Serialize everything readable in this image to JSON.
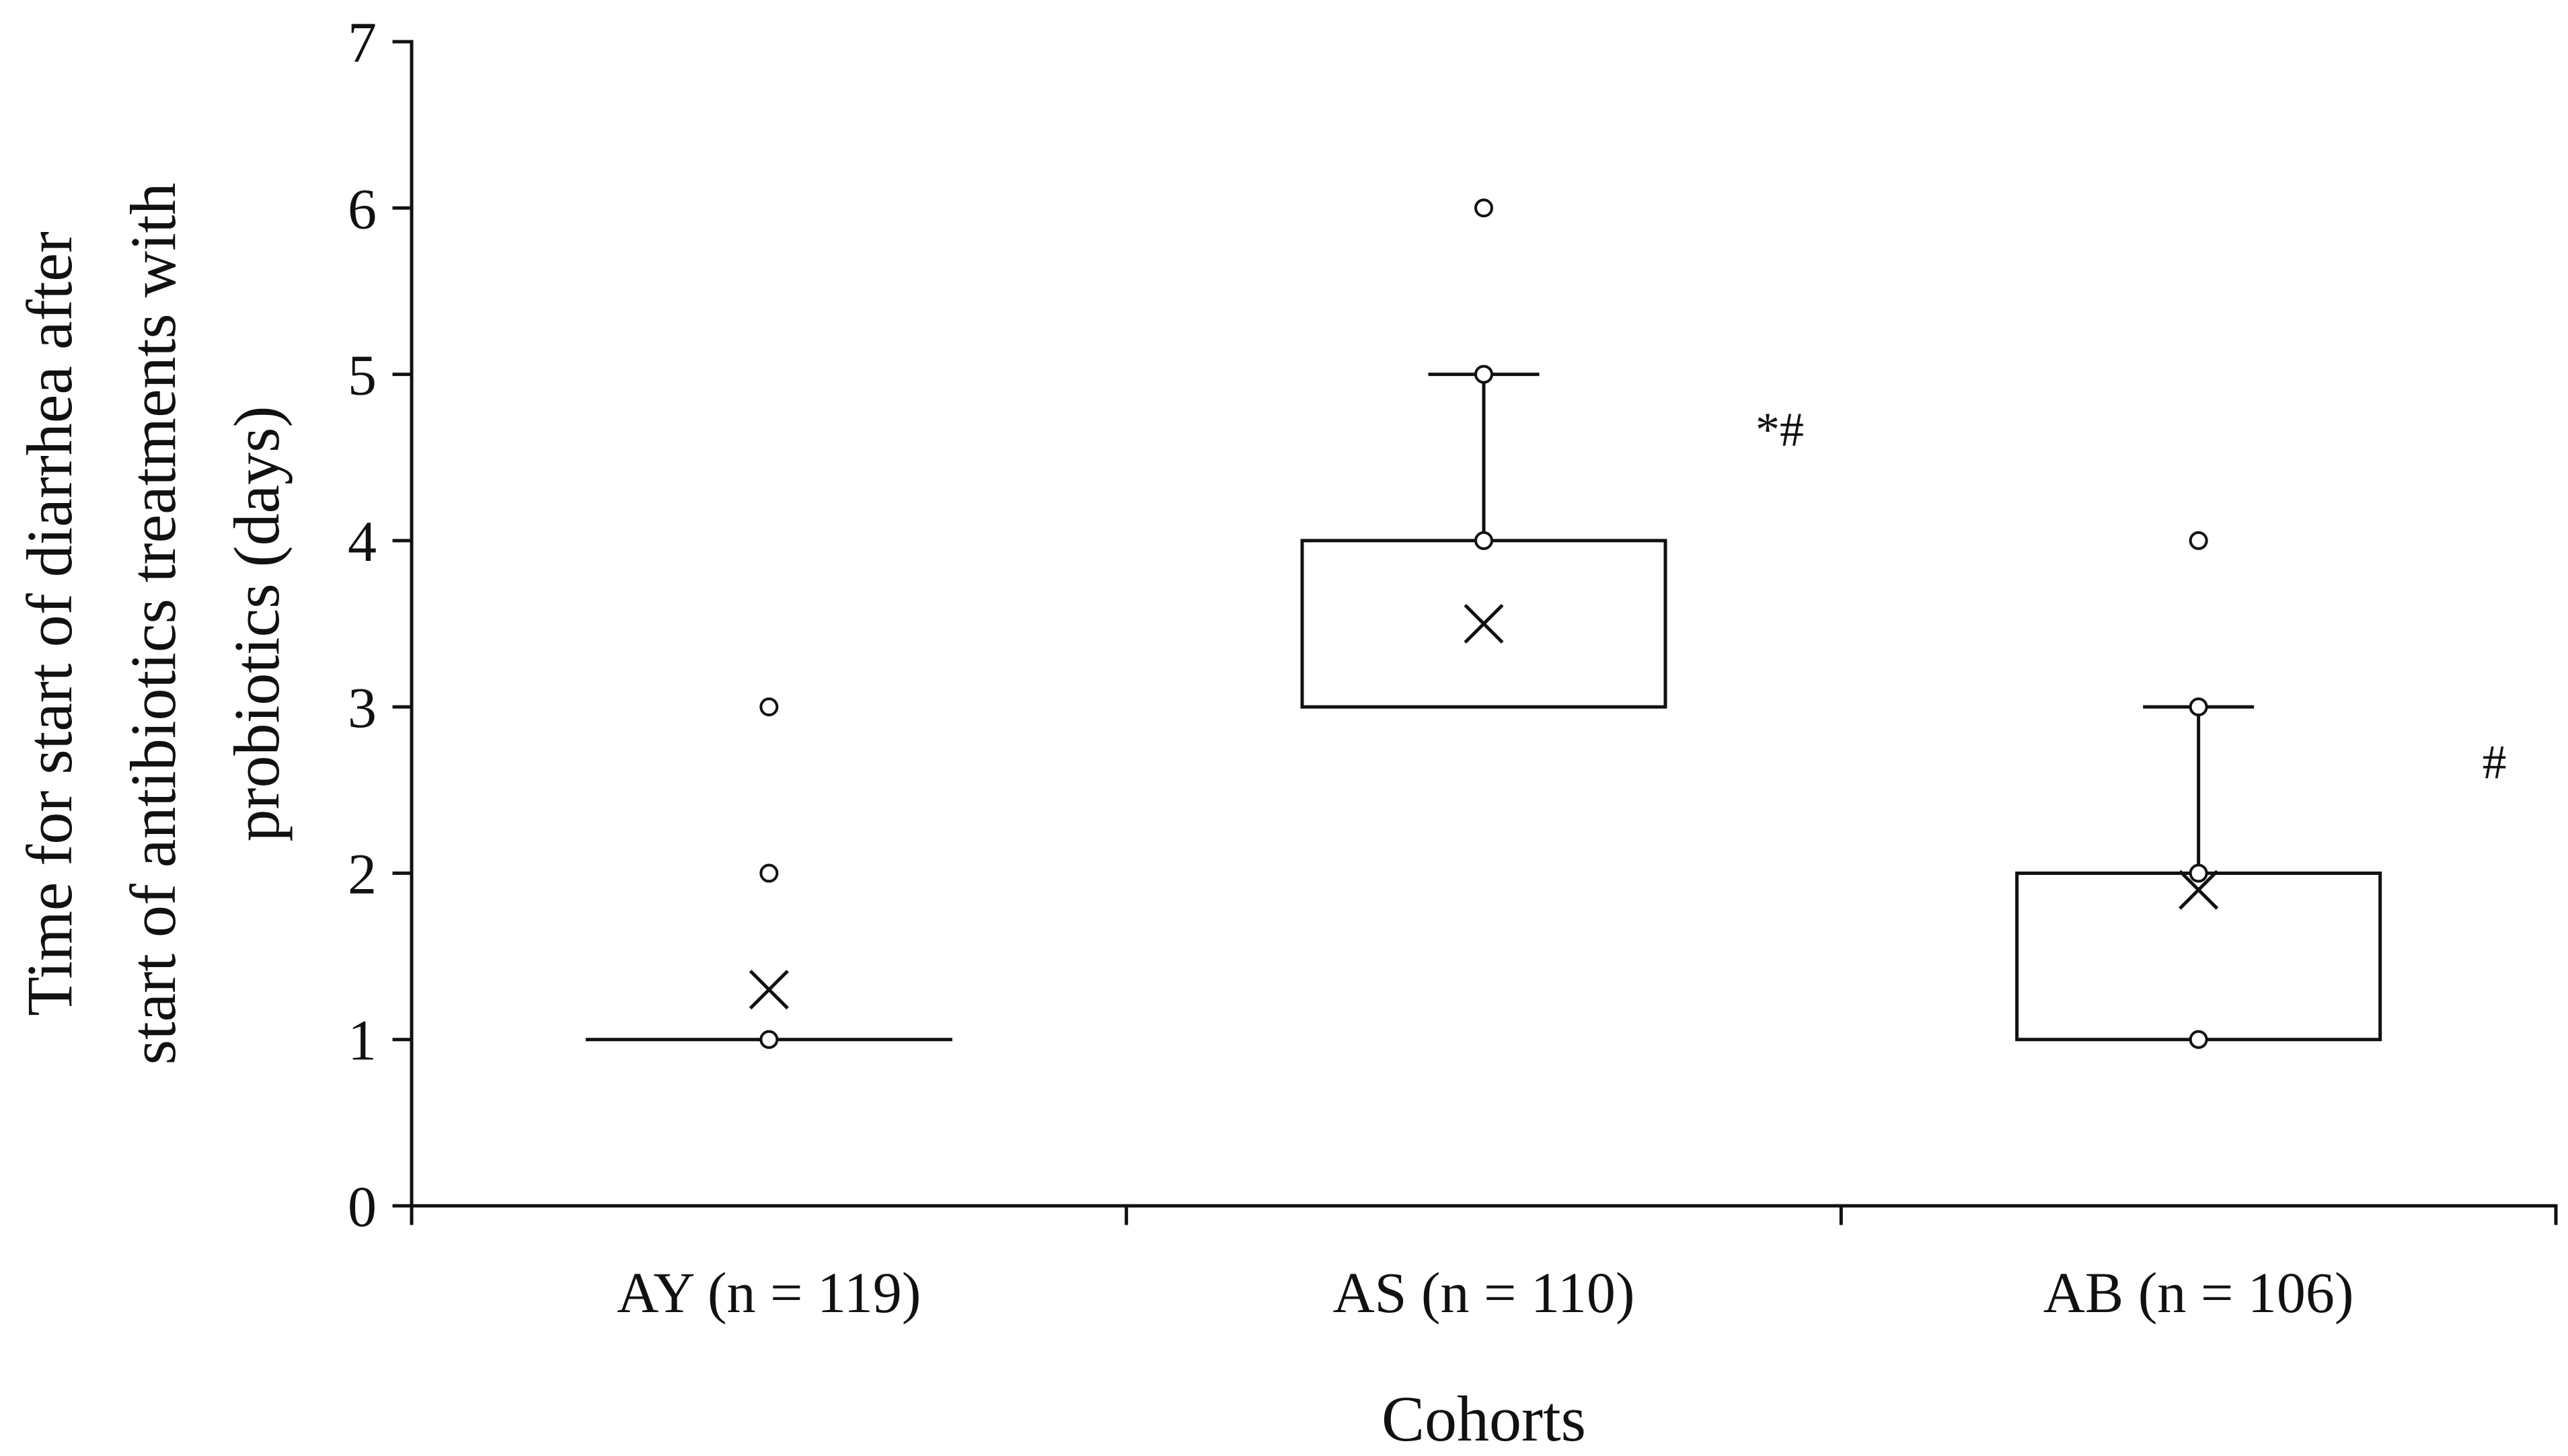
{
  "chart_data": {
    "type": "box",
    "xlabel": "Cohorts",
    "ylabel_lines": [
      "Time for start of diarrhea after",
      "start of antibiotics treatments with",
      "probiotics (days)"
    ],
    "ylim": [
      0,
      7
    ],
    "yticks": [
      0,
      1,
      2,
      3,
      4,
      5,
      6,
      7
    ],
    "grid": false,
    "legend": "none",
    "categories": [
      "AY (n = 119)",
      "AS (n = 110)",
      "AB (n = 106)"
    ],
    "boxes": [
      {
        "category": "AY (n = 119)",
        "q1": 1,
        "median": 1,
        "q3": 1,
        "whisker_low": 1,
        "whisker_high": 1,
        "mean": 1.3,
        "points": [
          1,
          2,
          3
        ],
        "significance": ""
      },
      {
        "category": "AS (n = 110)",
        "q1": 3,
        "median": 3,
        "q3": 4,
        "whisker_low": 3,
        "whisker_high": 5,
        "mean": 3.5,
        "points": [
          4,
          5,
          6
        ],
        "significance": "*#"
      },
      {
        "category": "AB (n = 106)",
        "q1": 1,
        "median": 1,
        "q3": 2,
        "whisker_low": 1,
        "whisker_high": 3,
        "mean": 1.9,
        "points": [
          1,
          2,
          3,
          4
        ],
        "significance": "#"
      }
    ]
  }
}
